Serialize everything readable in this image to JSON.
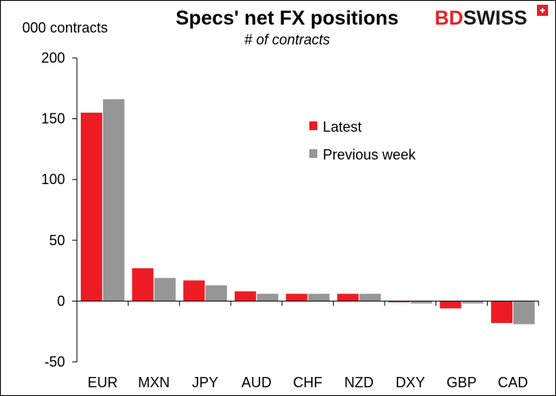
{
  "chart_data": {
    "type": "bar",
    "title": "Specs' net FX positions",
    "subtitle": "# of contracts",
    "ylabel": "000 contracts",
    "categories": [
      "EUR",
      "MXN",
      "JPY",
      "AUD",
      "CHF",
      "NZD",
      "DXY",
      "GBP",
      "CAD"
    ],
    "series": [
      {
        "name": "Latest",
        "color": "#ed1c24",
        "values": [
          155,
          27,
          17,
          8,
          6,
          6,
          -1,
          -6,
          -18
        ]
      },
      {
        "name": "Previous week",
        "color": "#969696",
        "values": [
          166,
          19,
          13,
          6,
          6,
          6,
          -2,
          -2,
          -19
        ]
      }
    ],
    "ylim": [
      -50,
      200
    ],
    "yticks": [
      -50,
      0,
      50,
      100,
      150,
      200
    ],
    "grid": false,
    "legend_position": "top-right"
  },
  "logo": {
    "text_red": "BD",
    "text_dark": "SWISS",
    "red": "#e8202a",
    "dark": "#1a1a1a"
  }
}
